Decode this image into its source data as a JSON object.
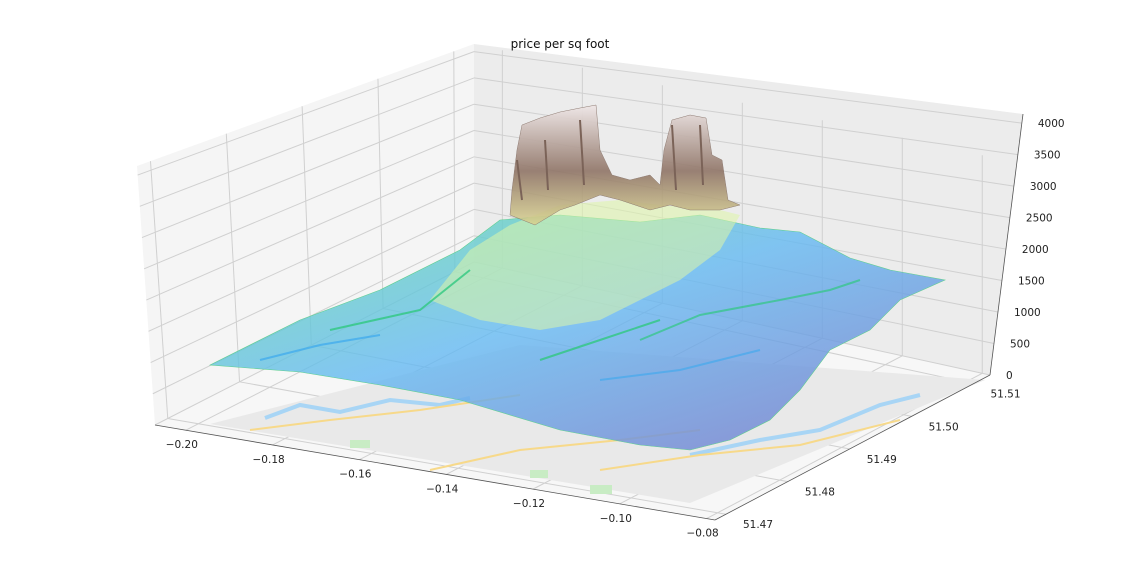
{
  "chart_data": {
    "type": "surface-3d",
    "title": "price per sq foot",
    "xlabel": "",
    "ylabel": "",
    "zlabel": "",
    "x_ticks": [
      "−0.20",
      "−0.18",
      "−0.16",
      "−0.14",
      "−0.12",
      "−0.10",
      "−0.08"
    ],
    "y_ticks": [
      "51.47",
      "51.48",
      "51.49",
      "51.50",
      "51.51"
    ],
    "z_ticks": [
      "0",
      "500",
      "1000",
      "1500",
      "2000",
      "2500",
      "3000",
      "3500",
      "4000"
    ],
    "xlim": [
      -0.205,
      -0.08
    ],
    "ylim": [
      51.47,
      51.515
    ],
    "zlim": [
      0,
      4200
    ],
    "grid": true,
    "colormap": "terrain",
    "surface_description_values": {
      "peak_left": {
        "x": -0.145,
        "y": 51.512,
        "z": 4000
      },
      "peak_right": {
        "x": -0.125,
        "y": 51.512,
        "z": 3950
      },
      "front_low": {
        "x": -0.1,
        "y": 51.475,
        "z": 300
      },
      "left_edge": {
        "x": -0.2,
        "y": 51.49,
        "z": 600
      },
      "right_edge": {
        "x": -0.08,
        "y": 51.515,
        "z": 1600
      }
    },
    "base_map": "street map of central London"
  },
  "colors": {
    "pane_left": "#f4f4f4",
    "pane_back": "#ececec",
    "grid": "#d6d6d6",
    "surface_low": "#7a7fd6",
    "surface_mid": "#6fe0a6",
    "surface_high": "#f3f6a6",
    "surface_peak": "#a58c82",
    "river": "#8cc8f0"
  }
}
